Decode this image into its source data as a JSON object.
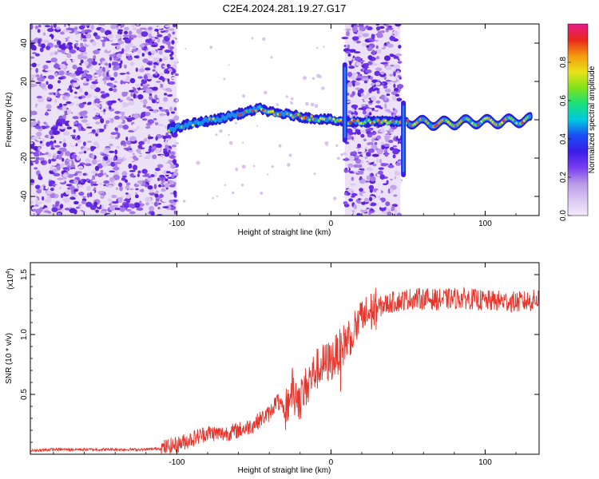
{
  "title": "C2E4.2024.281.19.27.G17",
  "colors": {
    "background": "#ffffff",
    "snr_line": "#e8352c",
    "axis": "#000000",
    "colorbar_stops": [
      "#f3eafa",
      "#d9c6f2",
      "#b89ae8",
      "#7a3df0",
      "#3a1de8",
      "#1a4cf5",
      "#00c8e0",
      "#19e07a",
      "#7fe21a",
      "#e8e21a",
      "#f59a10",
      "#e8281a",
      "#e81a8c"
    ]
  },
  "chart_data": [
    {
      "type": "heatmap",
      "xlabel": "Height of straight line (km)",
      "ylabel": "Frequency (Hz)",
      "xlim": [
        -195,
        135
      ],
      "ylim": [
        -50,
        50
      ],
      "x_ticks": [
        -100,
        0,
        100
      ],
      "y_ticks": [
        -40,
        -20,
        0,
        20,
        40
      ],
      "colorbar": {
        "label": "Normalized spectral amplitude",
        "range": [
          0,
          1
        ],
        "ticks": [
          "0.0",
          "0.2",
          "0.4",
          "0.6",
          "0.8"
        ]
      },
      "noise_regions": [
        {
          "x_start": -195,
          "x_end": -100,
          "level": 0.3
        },
        {
          "x_start": 9,
          "x_end": 45,
          "level": 0.3
        }
      ],
      "signal_trace": [
        {
          "x": -105,
          "y": -5
        },
        {
          "x": -90,
          "y": -2
        },
        {
          "x": -75,
          "y": 0
        },
        {
          "x": -60,
          "y": 3
        },
        {
          "x": -45,
          "y": 6
        },
        {
          "x": -40,
          "y": 4
        },
        {
          "x": -30,
          "y": 3
        },
        {
          "x": -15,
          "y": 1
        },
        {
          "x": 0,
          "y": 0
        },
        {
          "x": 5,
          "y": -1
        },
        {
          "x": 50,
          "y": -1
        },
        {
          "x": 70,
          "y": -2
        },
        {
          "x": 90,
          "y": -1
        },
        {
          "x": 110,
          "y": -1
        },
        {
          "x": 130,
          "y": 0
        }
      ],
      "vertical_features": [
        {
          "x": 9,
          "y_min": -12,
          "y_max": 30
        },
        {
          "x": 47,
          "y_min": -30,
          "y_max": 10
        }
      ]
    },
    {
      "type": "line",
      "xlabel": "Height of straight line (km)",
      "ylabel": "SNR (10 * v/v)",
      "y_multiplier": "(x10",
      "y_multiplier_exp": "4",
      "xlim": [
        -195,
        135
      ],
      "ylim": [
        0,
        1.6
      ],
      "x_ticks": [
        -100,
        0,
        100
      ],
      "y_ticks": [
        0.5,
        1.0,
        1.5
      ],
      "y_tick_labels": [
        "0.5",
        "1.0",
        "1.5"
      ],
      "series": [
        {
          "x": [
            -195,
            -180,
            -160,
            -140,
            -120,
            -110,
            -100,
            -90,
            -80,
            -70,
            -60,
            -55,
            -50,
            -45,
            -40,
            -35,
            -30,
            -25,
            -20,
            -15,
            -10,
            -5,
            0,
            5,
            10,
            15,
            20,
            25,
            30,
            35,
            40,
            45,
            50,
            55,
            60,
            70,
            80,
            90,
            100,
            110,
            120,
            130,
            135
          ],
          "y": [
            0.03,
            0.04,
            0.04,
            0.04,
            0.04,
            0.05,
            0.08,
            0.13,
            0.18,
            0.17,
            0.2,
            0.22,
            0.25,
            0.3,
            0.34,
            0.45,
            0.35,
            0.55,
            0.45,
            0.6,
            0.7,
            0.75,
            0.78,
            0.85,
            0.95,
            1.05,
            1.12,
            1.18,
            1.22,
            1.25,
            1.27,
            1.28,
            1.3,
            1.3,
            1.3,
            1.29,
            1.3,
            1.3,
            1.28,
            1.28,
            1.27,
            1.28,
            1.3
          ]
        }
      ]
    }
  ]
}
